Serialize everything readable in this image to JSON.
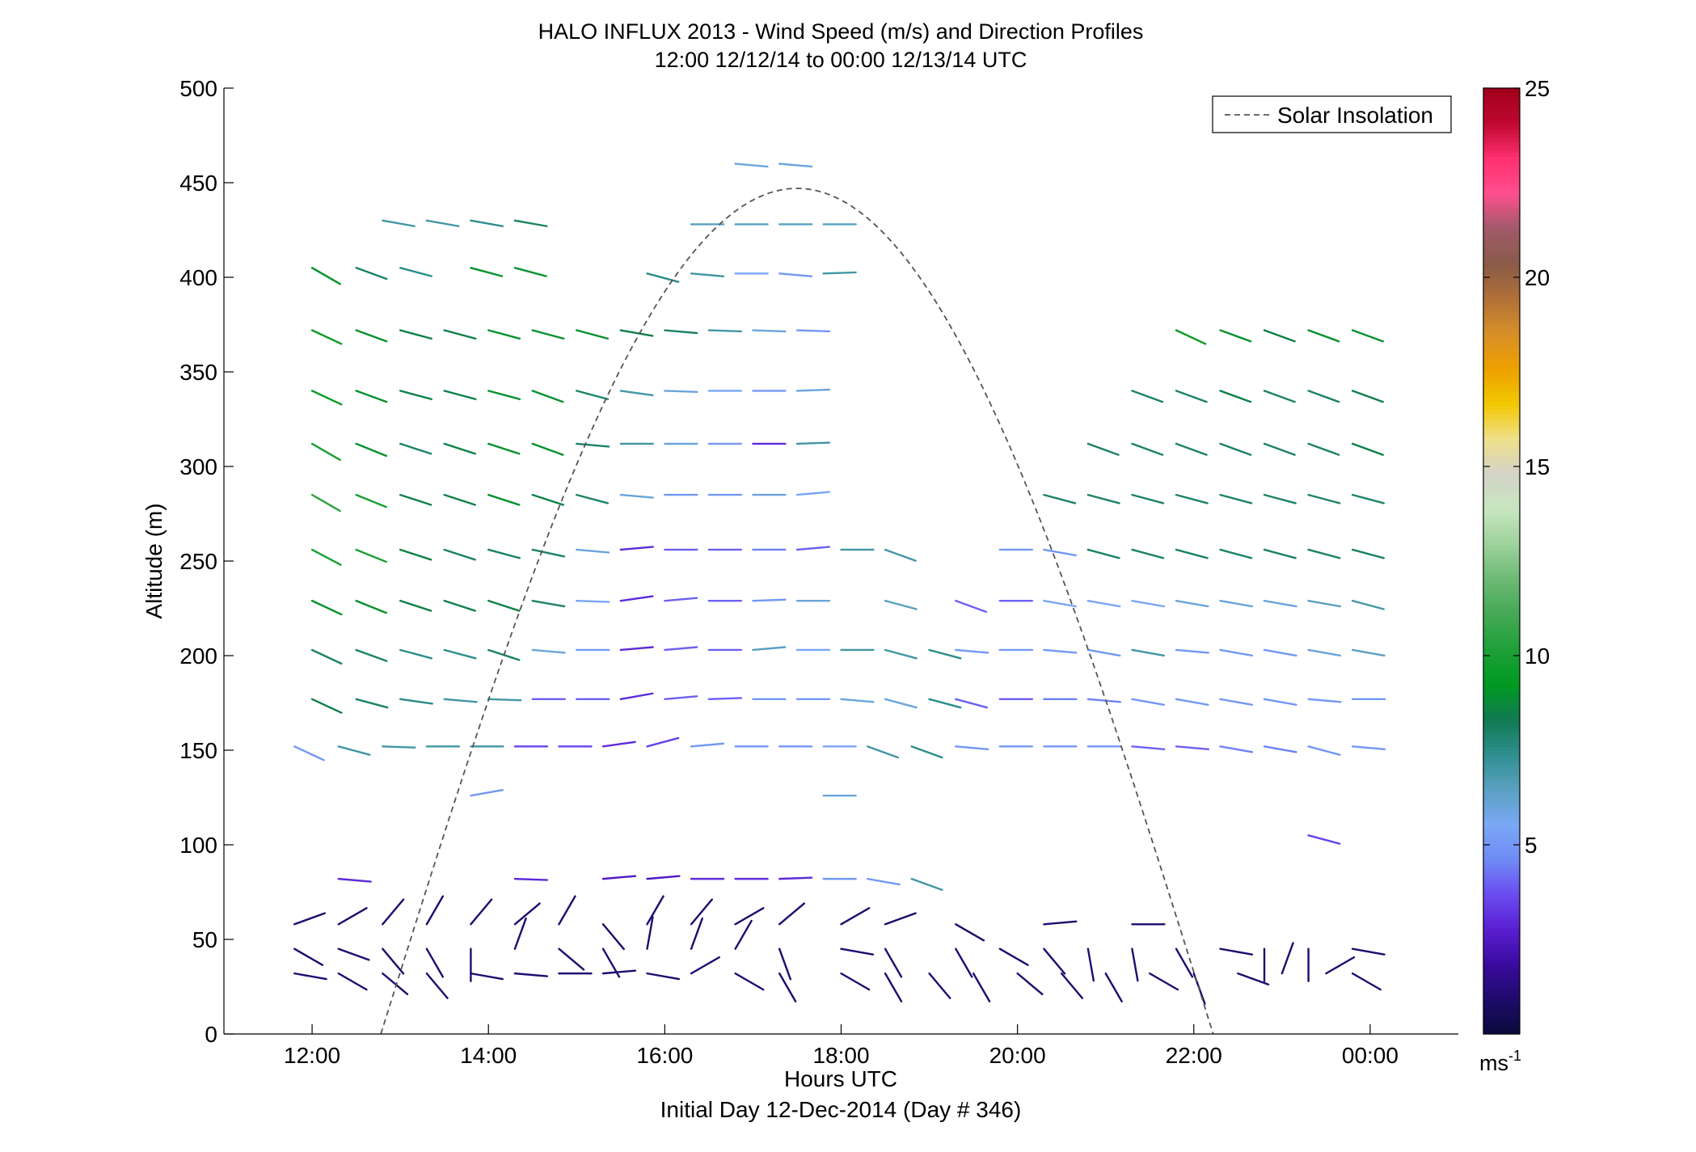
{
  "chart_data": {
    "type": "scatter",
    "title": "HALO INFLUX 2013 - Wind Speed (m/s) and Direction Profiles",
    "subtitle": "12:00 12/12/14 to 00:00 12/13/14  UTC",
    "xlabel": "Hours UTC",
    "xlabel2": "Initial Day 12-Dec-2014 (Day # 346)",
    "ylabel": "Altitude (m)",
    "xlim": [
      11.0,
      25.0
    ],
    "ylim": [
      0,
      500
    ],
    "x_ticks": [
      12,
      14,
      16,
      18,
      20,
      22,
      24
    ],
    "x_tick_labels": [
      "12:00",
      "14:00",
      "16:00",
      "18:00",
      "20:00",
      "22:00",
      "00:00"
    ],
    "y_ticks": [
      0,
      50,
      100,
      150,
      200,
      250,
      300,
      350,
      400,
      450,
      500
    ],
    "y_tick_labels": [
      "0",
      "50",
      "100",
      "150",
      "200",
      "250",
      "300",
      "350",
      "400",
      "450",
      "500"
    ],
    "legend": {
      "entries": [
        "Solar Insolation"
      ],
      "placement": "top-right"
    },
    "solar_insolation": {
      "style": "dashed",
      "color": "#555555",
      "x_start": 12.78,
      "x_end": 22.22,
      "x_peak": 17.5,
      "y_peak": 447
    },
    "colorbar": {
      "range": [
        0,
        25
      ],
      "ticks": [
        5,
        10,
        15,
        20,
        25
      ],
      "tick_labels": [
        "5",
        "10",
        "15",
        "20",
        "25"
      ],
      "unit": "ms",
      "unit_sup": "-1",
      "colors": [
        "#0b0b3a",
        "#1e0b6b",
        "#3a0a9e",
        "#5a1fd0",
        "#6a4cf0",
        "#6f8bf5",
        "#7aa8f5",
        "#5aa0c0",
        "#2f8f8f",
        "#107a50",
        "#009a20",
        "#1fa03a",
        "#45a855",
        "#6cba75",
        "#9ed29c",
        "#c8e6c0",
        "#d3d3c8",
        "#f0e08a",
        "#f2c800",
        "#eda000",
        "#d69028",
        "#b07038",
        "#8a5a48",
        "#a05a6a",
        "#ff4f8f",
        "#ff3070",
        "#c00830",
        "#a0001a"
      ]
    },
    "series": [
      {
        "altitude": 460,
        "x": [
          16.8,
          17.3
        ],
        "speed": [
          6,
          6
        ],
        "dir": [
          275,
          275
        ]
      },
      {
        "altitude": 430,
        "x": [
          12.8,
          13.3,
          13.8,
          14.3
        ],
        "speed": [
          7,
          7,
          7.5,
          8
        ],
        "dir": [
          280,
          280,
          280,
          280
        ]
      },
      {
        "altitude": 428,
        "x": [
          16.3,
          16.8,
          17.3,
          17.8
        ],
        "speed": [
          6.5,
          6.5,
          6.5,
          6.5
        ],
        "dir": [
          270,
          270,
          270,
          270
        ]
      },
      {
        "altitude": 405,
        "x": [
          12.0,
          12.5,
          13.0,
          13.8,
          14.3
        ],
        "speed": [
          9,
          8,
          7.5,
          9,
          9
        ],
        "dir": [
          300,
          290,
          285,
          285,
          285
        ]
      },
      {
        "altitude": 402,
        "x": [
          15.8,
          16.3,
          16.8,
          17.3,
          17.8
        ],
        "speed": [
          7.5,
          7,
          5.5,
          5,
          7
        ],
        "dir": [
          285,
          275,
          270,
          275,
          268
        ]
      },
      {
        "altitude": 372,
        "x": [
          12.0,
          12.5,
          13.0,
          13.5,
          14.0,
          14.5,
          15.0,
          15.5,
          16.0,
          16.5,
          17.0,
          17.5
        ],
        "speed": [
          9.5,
          9,
          8.5,
          8.5,
          9,
          9,
          9,
          8.5,
          8,
          7,
          6,
          5
        ],
        "dir": [
          295,
          290,
          285,
          285,
          285,
          285,
          285,
          280,
          275,
          272,
          272,
          272
        ]
      },
      {
        "altitude": 372,
        "x": [
          21.8,
          22.3,
          22.8,
          23.3,
          23.8
        ],
        "speed": [
          9.5,
          9,
          8.5,
          9,
          9
        ],
        "dir": [
          295,
          290,
          290,
          290,
          290
        ]
      },
      {
        "altitude": 340,
        "x": [
          12.0,
          12.5,
          13.0,
          13.5,
          14.0,
          14.5,
          15.0,
          15.5,
          16.0,
          16.5,
          17.0,
          17.5
        ],
        "speed": [
          9.5,
          9,
          8.5,
          8.5,
          9,
          9,
          8,
          7,
          6,
          5.5,
          5,
          6
        ],
        "dir": [
          295,
          290,
          285,
          285,
          285,
          290,
          285,
          278,
          272,
          270,
          270,
          268
        ]
      },
      {
        "altitude": 340,
        "x": [
          21.3,
          21.8,
          22.3,
          22.8,
          23.3,
          23.8
        ],
        "speed": [
          8,
          8,
          8.5,
          8,
          8,
          8.5
        ],
        "dir": [
          290,
          290,
          290,
          290,
          290,
          290
        ]
      },
      {
        "altitude": 312,
        "x": [
          12.0,
          12.5,
          13.0,
          13.5,
          14.0,
          14.5,
          15.0,
          15.5,
          16.0,
          16.5,
          17.0,
          17.5
        ],
        "speed": [
          10,
          9,
          8,
          8.5,
          9,
          9,
          8,
          7,
          6,
          5,
          3,
          7
        ],
        "dir": [
          300,
          292,
          288,
          288,
          288,
          290,
          275,
          270,
          270,
          270,
          270,
          268
        ]
      },
      {
        "altitude": 312,
        "x": [
          20.8,
          21.3,
          21.8,
          22.3,
          22.8,
          23.3,
          23.8
        ],
        "speed": [
          8,
          8,
          8,
          8,
          8,
          8,
          8.5
        ],
        "dir": [
          290,
          290,
          290,
          290,
          290,
          290,
          290
        ]
      },
      {
        "altitude": 285,
        "x": [
          12.0,
          12.5,
          13.0,
          13.5,
          14.0,
          14.5,
          15.0,
          15.5,
          16.0,
          16.5,
          17.0,
          17.5
        ],
        "speed": [
          10.5,
          10,
          8.5,
          8.5,
          9,
          8.5,
          8,
          6,
          5,
          5,
          6,
          5.5
        ],
        "dir": [
          300,
          292,
          288,
          288,
          288,
          288,
          285,
          275,
          270,
          270,
          270,
          265
        ]
      },
      {
        "altitude": 285,
        "x": [
          20.3,
          20.8,
          21.3,
          21.8,
          22.3,
          22.8,
          23.3,
          23.8
        ],
        "speed": [
          8,
          8,
          8,
          8,
          8,
          8,
          8,
          8
        ],
        "dir": [
          285,
          285,
          285,
          285,
          285,
          285,
          285,
          285
        ]
      },
      {
        "altitude": 256,
        "x": [
          12.0,
          12.5,
          13.0,
          13.5,
          14.0,
          14.5,
          15.0,
          15.5,
          16.0,
          16.5,
          17.0,
          17.5,
          18.0
        ],
        "speed": [
          10,
          10,
          8.5,
          8,
          8,
          8,
          6,
          3,
          4,
          4,
          4.5,
          4,
          7
        ],
        "dir": [
          298,
          292,
          288,
          288,
          285,
          282,
          275,
          265,
          270,
          270,
          270,
          265,
          270
        ]
      },
      {
        "altitude": 256,
        "x": [
          18.5,
          19.8,
          20.3,
          20.8,
          21.3,
          21.8,
          22.3,
          22.8,
          23.3,
          23.8
        ],
        "speed": [
          7,
          5,
          5,
          8,
          8,
          8,
          8,
          8,
          8,
          8
        ],
        "dir": [
          290,
          270,
          280,
          285,
          285,
          285,
          285,
          285,
          285,
          285
        ]
      },
      {
        "altitude": 229,
        "x": [
          12.0,
          12.5,
          13.0,
          13.5,
          14.0,
          14.5,
          15.0,
          15.5,
          16.0,
          16.5,
          17.0,
          17.5
        ],
        "speed": [
          9,
          9,
          8.5,
          8.5,
          8.5,
          8,
          5.5,
          3,
          4,
          4,
          5,
          6
        ],
        "dir": [
          295,
          292,
          288,
          288,
          288,
          280,
          272,
          262,
          265,
          270,
          268,
          270
        ]
      },
      {
        "altitude": 229,
        "x": [
          18.5,
          19.3,
          19.8,
          20.3,
          20.8,
          21.3,
          21.8,
          22.3,
          22.8,
          23.3,
          23.8
        ],
        "speed": [
          6.5,
          4,
          4,
          5.5,
          5.5,
          5.5,
          6,
          6,
          6,
          6.5,
          7
        ],
        "dir": [
          285,
          290,
          270,
          280,
          280,
          280,
          280,
          280,
          280,
          280,
          285
        ]
      },
      {
        "altitude": 203,
        "x": [
          12.0,
          12.5,
          13.0,
          13.5,
          14.0,
          14.5,
          15.0,
          15.5,
          16.0,
          16.5,
          17.0,
          17.5
        ],
        "speed": [
          8,
          8,
          7.5,
          7.5,
          8,
          6,
          5,
          3,
          4,
          4,
          6.5,
          5.5
        ],
        "dir": [
          295,
          290,
          285,
          285,
          288,
          275,
          270,
          265,
          265,
          270,
          265,
          270
        ]
      },
      {
        "altitude": 203,
        "x": [
          18.0,
          18.5,
          19.0,
          19.3,
          19.8,
          20.3,
          20.8,
          21.3,
          21.8,
          22.3,
          22.8,
          23.3,
          23.8
        ],
        "speed": [
          7,
          7,
          7.5,
          5,
          5,
          5,
          5,
          7,
          5,
          5,
          5,
          6,
          6.5
        ],
        "dir": [
          270,
          285,
          285,
          275,
          270,
          275,
          280,
          280,
          275,
          280,
          280,
          280,
          280
        ]
      },
      {
        "altitude": 177,
        "x": [
          12.0,
          12.5,
          13.0,
          13.5,
          14.0,
          14.5,
          15.0,
          15.5,
          16.0,
          16.5,
          17.0,
          17.5,
          18.0
        ],
        "speed": [
          8.5,
          8,
          7.5,
          7,
          7,
          4,
          4,
          3,
          4,
          4,
          5,
          5,
          6
        ],
        "dir": [
          295,
          285,
          278,
          275,
          272,
          270,
          270,
          260,
          265,
          268,
          270,
          270,
          275
        ]
      },
      {
        "altitude": 177,
        "x": [
          18.5,
          19.0,
          19.3,
          19.8,
          20.3,
          20.8,
          21.3,
          21.8,
          22.3,
          22.8,
          23.3,
          23.8
        ],
        "speed": [
          6,
          7.5,
          4,
          4,
          4.5,
          4.5,
          5,
          5,
          5,
          5,
          5,
          5
        ],
        "dir": [
          285,
          285,
          285,
          270,
          270,
          275,
          280,
          280,
          280,
          280,
          275,
          270
        ]
      },
      {
        "altitude": 152,
        "x": [
          11.8,
          12.3,
          12.8,
          13.3,
          13.8,
          14.3,
          14.8,
          15.3,
          15.8,
          16.3,
          16.8,
          17.3,
          17.8
        ],
        "speed": [
          5,
          7,
          7,
          7,
          7,
          3.5,
          3.5,
          3,
          3.5,
          5,
          5,
          5,
          5.5
        ],
        "dir": [
          295,
          285,
          272,
          270,
          270,
          270,
          270,
          262,
          255,
          265,
          270,
          270,
          270
        ]
      },
      {
        "altitude": 152,
        "x": [
          18.3,
          18.8,
          19.3,
          19.8,
          20.3,
          20.8,
          21.3,
          21.8,
          22.3,
          22.8,
          23.3,
          23.8
        ],
        "speed": [
          7,
          7.5,
          5,
          5,
          5,
          5,
          4,
          4,
          4.5,
          4.5,
          5,
          5
        ],
        "dir": [
          290,
          290,
          275,
          270,
          270,
          270,
          275,
          275,
          280,
          280,
          285,
          275
        ]
      },
      {
        "altitude": 126,
        "x": [
          13.8,
          17.8
        ],
        "speed": [
          5,
          6
        ],
        "dir": [
          260,
          270
        ]
      },
      {
        "altitude": 105,
        "x": [
          23.3
        ],
        "speed": [
          3.5
        ],
        "dir": [
          285
        ]
      },
      {
        "altitude": 82,
        "x": [
          12.3,
          14.3,
          15.3,
          15.8,
          16.3,
          16.8,
          17.3,
          17.8,
          18.3,
          18.8
        ],
        "speed": [
          3,
          3,
          2.5,
          2.5,
          3,
          3,
          3,
          5,
          5,
          7
        ],
        "dir": [
          275,
          272,
          265,
          265,
          270,
          270,
          268,
          270,
          280,
          290
        ]
      },
      {
        "altitude": 58,
        "x": [
          11.8,
          12.3,
          12.8,
          13.3,
          13.8,
          14.3,
          14.8,
          15.3,
          15.8,
          16.3,
          16.8,
          17.3,
          18.0,
          18.5,
          19.3,
          20.3,
          21.3
        ],
        "speed": [
          1,
          1,
          1,
          1,
          1,
          1,
          1,
          1,
          1,
          1,
          1,
          1,
          1,
          1,
          1,
          1,
          1
        ],
        "dir": [
          250,
          240,
          220,
          210,
          220,
          230,
          210,
          320,
          210,
          220,
          240,
          230,
          240,
          250,
          300,
          265,
          270
        ]
      },
      {
        "altitude": 45,
        "x": [
          11.8,
          12.3,
          12.8,
          13.3,
          13.8,
          14.3,
          14.8,
          15.3,
          15.8,
          16.3,
          16.8,
          17.3,
          18.0,
          18.5,
          19.3,
          19.8,
          20.3,
          20.8,
          21.3,
          21.8,
          22.3,
          22.8,
          23.3,
          23.8
        ],
        "speed": [
          1,
          1,
          1,
          1,
          1,
          1,
          1,
          1,
          1,
          1,
          1,
          1,
          1,
          1,
          1,
          1,
          1,
          1,
          1,
          1,
          1,
          1,
          1,
          1
        ],
        "dir": [
          300,
          290,
          320,
          330,
          360,
          200,
          310,
          330,
          190,
          200,
          210,
          340,
          280,
          330,
          330,
          300,
          320,
          350,
          350,
          330,
          280,
          360,
          360,
          280
        ]
      },
      {
        "altitude": 32,
        "x": [
          11.8,
          12.3,
          12.8,
          13.3,
          13.8,
          14.3,
          14.8,
          15.3,
          15.8,
          16.3,
          16.8,
          17.3,
          18.0,
          18.5,
          19.0,
          19.5,
          20.0,
          20.5,
          21.0,
          21.5,
          22.0,
          22.5,
          23.0,
          23.5,
          23.8
        ],
        "speed": [
          1,
          1,
          1,
          1,
          1,
          1,
          1,
          1,
          1,
          1,
          1,
          1,
          1,
          1,
          1,
          1,
          1,
          1,
          1,
          1,
          1,
          1,
          1,
          1,
          1
        ],
        "dir": [
          280,
          300,
          310,
          320,
          280,
          275,
          270,
          265,
          280,
          240,
          300,
          330,
          300,
          330,
          320,
          330,
          310,
          320,
          330,
          300,
          340,
          290,
          200,
          240,
          300
        ]
      }
    ]
  }
}
